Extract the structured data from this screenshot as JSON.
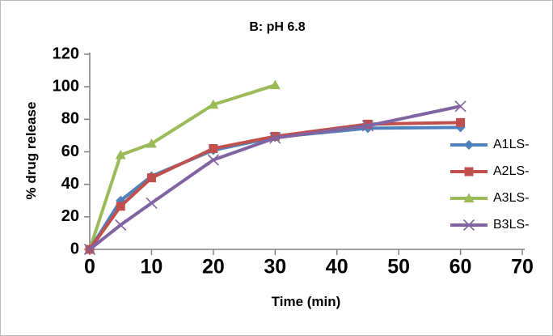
{
  "chart_data": {
    "type": "line",
    "title": "B: pH 6.8",
    "xlabel": "Time (min)",
    "ylabel": "% drug release",
    "xlim": [
      0,
      70
    ],
    "ylim": [
      0,
      120
    ],
    "x_ticks": [
      0,
      10,
      20,
      30,
      40,
      50,
      60,
      70
    ],
    "y_ticks": [
      0,
      20,
      40,
      60,
      80,
      100,
      120
    ],
    "grid": false,
    "legend_position": "right",
    "axis_color": "#808080",
    "series": [
      {
        "name": "A1LS-",
        "color": "#4F81BD",
        "marker": "diamond",
        "x": [
          0,
          5,
          10,
          20,
          30,
          45,
          60
        ],
        "values": [
          0,
          30,
          45,
          61,
          69,
          74.5,
          75
        ]
      },
      {
        "name": "A2LS-",
        "color": "#C0504D",
        "marker": "square",
        "x": [
          0,
          5,
          10,
          20,
          30,
          45,
          60
        ],
        "values": [
          0,
          26.5,
          44,
          62,
          69.5,
          77,
          78
        ]
      },
      {
        "name": "A3LS-",
        "color": "#9BBB59",
        "marker": "triangle",
        "x": [
          0,
          5,
          10,
          20,
          30
        ],
        "values": [
          0,
          58,
          65,
          89,
          101
        ]
      },
      {
        "name": "B3LS-",
        "color": "#8064A2",
        "marker": "x",
        "x": [
          0,
          5,
          10,
          20,
          30,
          45,
          60
        ],
        "values": [
          0,
          15,
          28.5,
          55,
          68.5,
          76,
          88
        ]
      }
    ]
  }
}
